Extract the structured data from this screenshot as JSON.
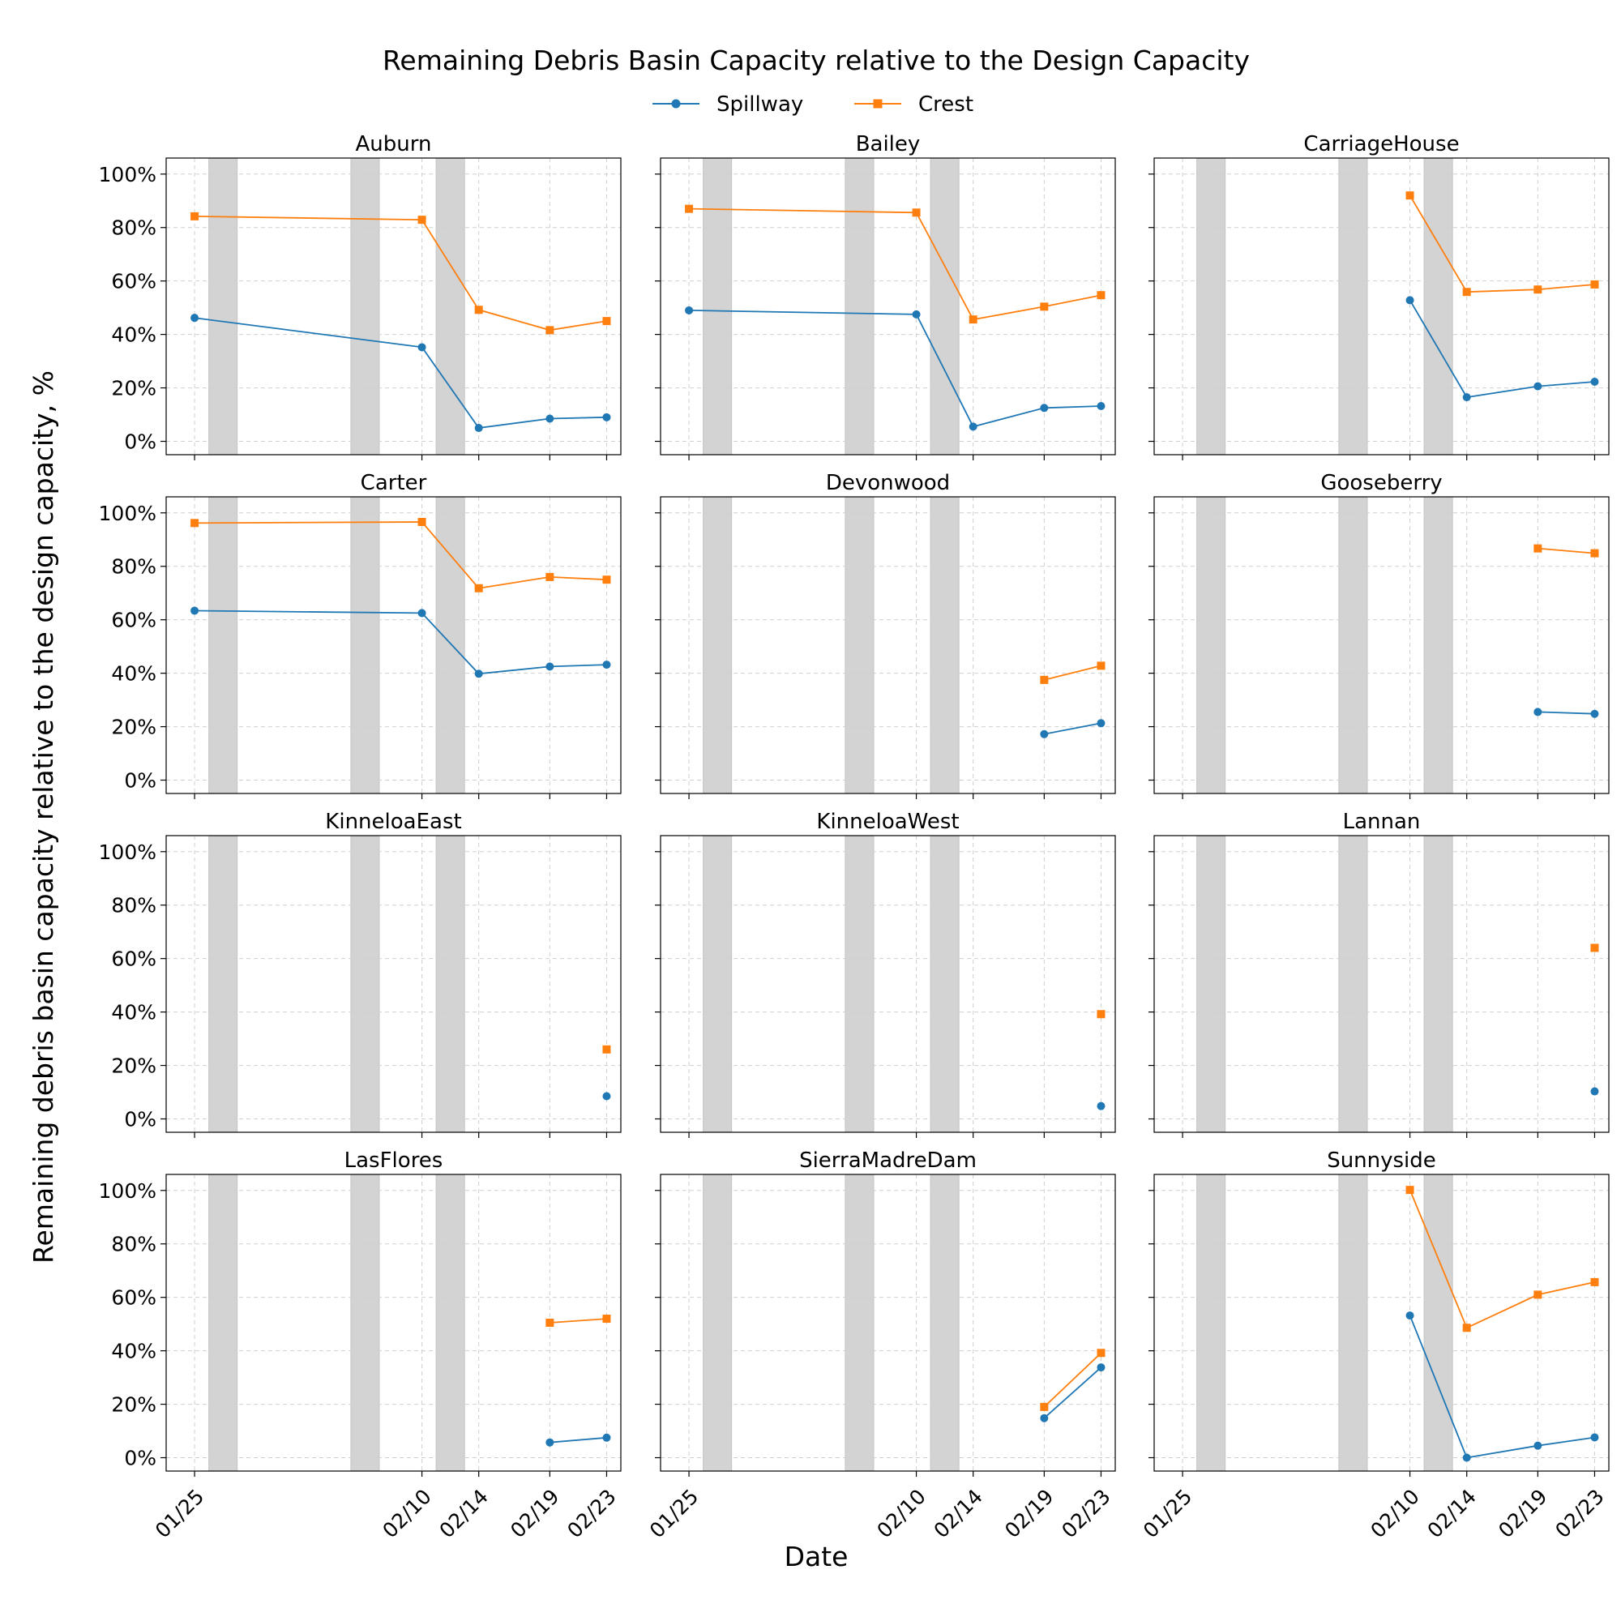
{
  "chart_data": {
    "type": "line",
    "title": "Remaining Debris Basin Capacity relative to the Design Capacity",
    "xlabel": "Date",
    "ylabel": "Remaining debris basin capacity relative to the design capacity, %",
    "ylim": [
      -5,
      106
    ],
    "yticks": [
      0,
      20,
      40,
      60,
      80,
      100
    ],
    "ytick_labels": [
      "0%",
      "20%",
      "40%",
      "60%",
      "80%",
      "100%"
    ],
    "xticks": [
      "01/25",
      "02/10",
      "02/14",
      "02/19",
      "02/23"
    ],
    "xlim": [
      "01/23",
      "02/24"
    ],
    "grid": true,
    "legend": {
      "placement": "top-center",
      "entries": [
        {
          "name": "Spillway",
          "color": "#1f77b4",
          "marker": "circle"
        },
        {
          "name": "Crest",
          "color": "#ff7f0e",
          "marker": "square"
        }
      ]
    },
    "shaded_periods": [
      {
        "start": "01/26",
        "end": "01/28"
      },
      {
        "start": "02/05",
        "end": "02/07"
      },
      {
        "start": "02/11",
        "end": "02/13"
      }
    ],
    "shade_color": "#d3d3d3",
    "panels": [
      {
        "name": "Auburn",
        "spillway": [
          [
            "01/25",
            46.2
          ],
          [
            "02/10",
            35.2
          ],
          [
            "02/14",
            5.0
          ],
          [
            "02/19",
            8.5
          ],
          [
            "02/23",
            9.0
          ]
        ],
        "crest": [
          [
            "01/25",
            84.2
          ],
          [
            "02/10",
            82.9
          ],
          [
            "02/14",
            49.2
          ],
          [
            "02/19",
            41.6
          ],
          [
            "02/23",
            45.0
          ]
        ]
      },
      {
        "name": "Bailey",
        "spillway": [
          [
            "01/25",
            49.0
          ],
          [
            "02/10",
            47.5
          ],
          [
            "02/14",
            5.5
          ],
          [
            "02/19",
            12.5
          ],
          [
            "02/23",
            13.2
          ]
        ],
        "crest": [
          [
            "01/25",
            87.0
          ],
          [
            "02/10",
            85.6
          ],
          [
            "02/14",
            45.6
          ],
          [
            "02/19",
            50.4
          ],
          [
            "02/23",
            54.7
          ]
        ]
      },
      {
        "name": "CarriageHouse",
        "spillway": [
          [
            "02/10",
            52.8
          ],
          [
            "02/14",
            16.5
          ],
          [
            "02/19",
            20.6
          ],
          [
            "02/23",
            22.3
          ]
        ],
        "crest": [
          [
            "02/10",
            92.0
          ],
          [
            "02/14",
            55.9
          ],
          [
            "02/19",
            56.8
          ],
          [
            "02/23",
            58.7
          ]
        ]
      },
      {
        "name": "Carter",
        "spillway": [
          [
            "01/25",
            63.4
          ],
          [
            "02/10",
            62.5
          ],
          [
            "02/14",
            39.8
          ],
          [
            "02/19",
            42.5
          ],
          [
            "02/23",
            43.2
          ]
        ],
        "crest": [
          [
            "01/25",
            96.2
          ],
          [
            "02/10",
            96.6
          ],
          [
            "02/14",
            71.8
          ],
          [
            "02/19",
            76.0
          ],
          [
            "02/23",
            75.0
          ]
        ]
      },
      {
        "name": "Devonwood",
        "spillway": [
          [
            "02/19",
            17.2
          ],
          [
            "02/23",
            21.3
          ]
        ],
        "crest": [
          [
            "02/19",
            37.5
          ],
          [
            "02/23",
            42.8
          ]
        ]
      },
      {
        "name": "Gooseberry",
        "spillway": [
          [
            "02/19",
            25.5
          ],
          [
            "02/23",
            24.8
          ]
        ],
        "crest": [
          [
            "02/19",
            86.7
          ],
          [
            "02/23",
            84.9
          ]
        ]
      },
      {
        "name": "KinneloaEast",
        "spillway": [
          [
            "02/23",
            8.5
          ]
        ],
        "crest": [
          [
            "02/23",
            26.0
          ]
        ]
      },
      {
        "name": "KinneloaWest",
        "spillway": [
          [
            "02/23",
            4.8
          ]
        ],
        "crest": [
          [
            "02/23",
            39.2
          ]
        ]
      },
      {
        "name": "Lannan",
        "spillway": [
          [
            "02/23",
            10.3
          ]
        ],
        "crest": [
          [
            "02/23",
            64.0
          ]
        ]
      },
      {
        "name": "LasFlores",
        "spillway": [
          [
            "02/19",
            5.7
          ],
          [
            "02/23",
            7.5
          ]
        ],
        "crest": [
          [
            "02/19",
            50.5
          ],
          [
            "02/23",
            52.0
          ]
        ]
      },
      {
        "name": "SierraMadreDam",
        "spillway": [
          [
            "02/19",
            14.8
          ],
          [
            "02/23",
            33.8
          ]
        ],
        "crest": [
          [
            "02/19",
            19.0
          ],
          [
            "02/23",
            39.2
          ]
        ]
      },
      {
        "name": "Sunnyside",
        "spillway": [
          [
            "02/10",
            53.2
          ],
          [
            "02/14",
            0.0
          ],
          [
            "02/19",
            4.5
          ],
          [
            "02/23",
            7.6
          ]
        ],
        "crest": [
          [
            "02/10",
            100.2
          ],
          [
            "02/14",
            48.6
          ],
          [
            "02/19",
            61.0
          ],
          [
            "02/23",
            65.7
          ]
        ]
      }
    ]
  }
}
